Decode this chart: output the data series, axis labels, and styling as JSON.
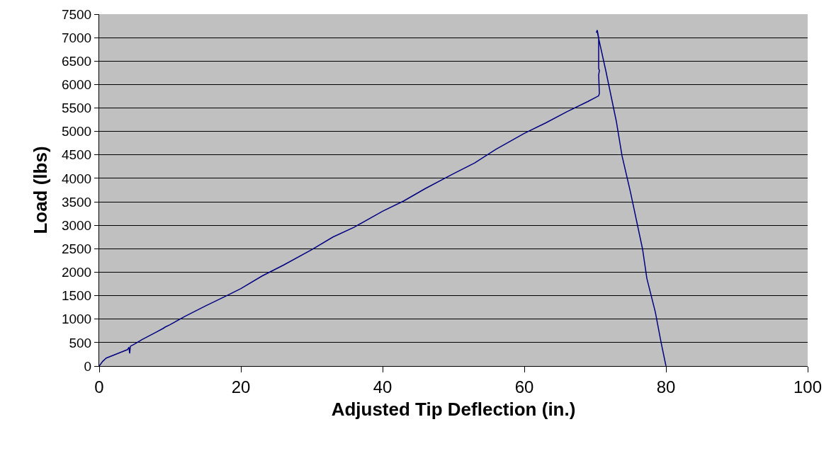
{
  "chart_data": {
    "type": "line",
    "xlabel": "Adjusted Tip Deflection (in.)",
    "ylabel": "Load (lbs)",
    "x": [
      0,
      0.5,
      1,
      2,
      3,
      4,
      4.2,
      4.3,
      4.4,
      5,
      6,
      8,
      9,
      9.3,
      10,
      12,
      15,
      18,
      20,
      23,
      26,
      30,
      33,
      36,
      40,
      43,
      46,
      50,
      53,
      56,
      60,
      63,
      66,
      69,
      70.5,
      70.6,
      70.5,
      70.6,
      70.5,
      70.5,
      70.3,
      70.2,
      70.3,
      71.5,
      73,
      73.8,
      75,
      76.7,
      77.3,
      78.5,
      79.3,
      80
    ],
    "series": [
      {
        "color": "#000080",
        "values": [
          0,
          100,
          170,
          230,
          290,
          350,
          400,
          270,
          420,
          470,
          560,
          720,
          800,
          830,
          880,
          1050,
          1280,
          1500,
          1650,
          1920,
          2150,
          2480,
          2750,
          2960,
          3300,
          3520,
          3780,
          4100,
          4330,
          4620,
          4960,
          5180,
          5420,
          5640,
          5760,
          5810,
          6200,
          6300,
          6340,
          7000,
          7160,
          7120,
          7120,
          6300,
          5210,
          4480,
          3700,
          2490,
          1870,
          1150,
          510,
          0
        ]
      }
    ],
    "xlim": [
      0,
      100
    ],
    "xticks": [
      0,
      20,
      40,
      60,
      80,
      100
    ],
    "ylim": [
      0,
      7500
    ],
    "yticks": [
      0,
      500,
      1000,
      1500,
      2000,
      2500,
      3000,
      3500,
      4000,
      4500,
      5000,
      5500,
      6000,
      6500,
      7000,
      7500
    ],
    "grid": "y",
    "marker": "none",
    "line_style": "solid"
  }
}
